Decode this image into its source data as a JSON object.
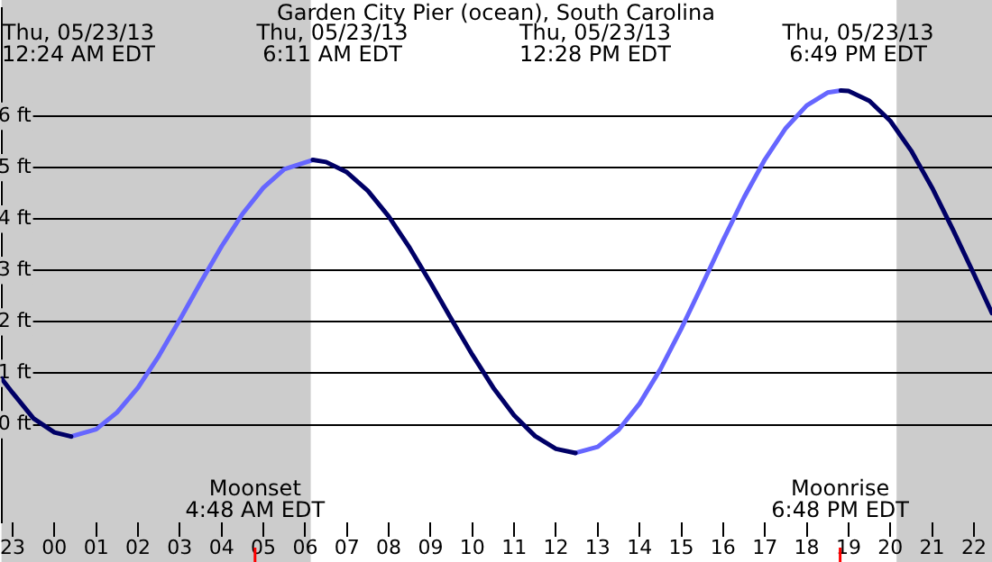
{
  "chart_data": {
    "type": "line",
    "title": "Garden City Pier (ocean), South Carolina",
    "series": [
      {
        "color": "#000066",
        "x": [
          "--05-22T22:44",
          "--05-22T23:00",
          "--05-22T23:30",
          "--05-23T00:00",
          "--05-23T00:24",
          "--05-23T03:00",
          "--05-23T06:11",
          "--05-23T06:30",
          "--05-23T07:00",
          "--05-23T07:30",
          "--05-23T08:00",
          "--05-23T08:30",
          "--05-23T09:00",
          "--05-23T09:30",
          "--05-23T10:00",
          "--05-23T10:30",
          "--05-23T11:00",
          "--05-23T11:30",
          "--05-23T12:00",
          "--05-23T12:28",
          "--05-23T15:00",
          "--05-23T18:49",
          "--05-23T19:00",
          "--05-23T19:30",
          "--05-23T20:00",
          "--05-23T20:30",
          "--05-23T21:00",
          "--05-23T21:30",
          "--05-23T22:00",
          "--05-23T22:26"
        ],
        "values": [
          0.9,
          0.62,
          0.12,
          -0.15,
          -0.23,
          null,
          5.15,
          5.11,
          4.91,
          4.55,
          4.05,
          3.44,
          2.76,
          2.05,
          1.36,
          0.72,
          0.18,
          -0.22,
          -0.47,
          -0.55,
          null,
          6.5,
          6.49,
          6.3,
          5.91,
          5.33,
          4.61,
          3.79,
          2.93,
          2.17
        ]
      },
      {
        "color": "#6666ff",
        "x": [
          "--05-23T00:24",
          "--05-23T01:00",
          "--05-23T01:30",
          "--05-23T02:00",
          "--05-23T02:30",
          "--05-23T03:00",
          "--05-23T03:30",
          "--05-23T04:00",
          "--05-23T04:30",
          "--05-23T05:00",
          "--05-23T05:30",
          "--05-23T06:11",
          "--05-23T09:00",
          "--05-23T12:28",
          "--05-23T13:00",
          "--05-23T13:30",
          "--05-23T14:00",
          "--05-23T14:30",
          "--05-23T15:00",
          "--05-23T15:30",
          "--05-23T16:00",
          "--05-23T16:30",
          "--05-23T17:00",
          "--05-23T17:30",
          "--05-23T18:00",
          "--05-23T18:30",
          "--05-23T18:49"
        ],
        "values": [
          -0.23,
          -0.09,
          0.24,
          0.72,
          1.34,
          2.04,
          2.77,
          3.47,
          4.1,
          4.61,
          4.97,
          5.15,
          null,
          -0.55,
          -0.43,
          -0.1,
          0.41,
          1.08,
          1.87,
          2.72,
          3.59,
          4.42,
          5.16,
          5.77,
          6.21,
          6.46,
          6.5
        ]
      }
    ],
    "xlim": [
      "--05-22T22:44",
      "--05-23T22:26"
    ],
    "xticks": [
      {
        "value": "--05-22T23:00",
        "label": "23"
      },
      {
        "value": "--05-23T00:00",
        "label": "00"
      },
      {
        "value": "--05-23T01:00",
        "label": "01"
      },
      {
        "value": "--05-23T02:00",
        "label": "02"
      },
      {
        "value": "--05-23T03:00",
        "label": "03"
      },
      {
        "value": "--05-23T04:00",
        "label": "04"
      },
      {
        "value": "--05-23T05:00",
        "label": "05"
      },
      {
        "value": "--05-23T06:00",
        "label": "06"
      },
      {
        "value": "--05-23T07:00",
        "label": "07"
      },
      {
        "value": "--05-23T08:00",
        "label": "08"
      },
      {
        "value": "--05-23T09:00",
        "label": "09"
      },
      {
        "value": "--05-23T10:00",
        "label": "10"
      },
      {
        "value": "--05-23T11:00",
        "label": "11"
      },
      {
        "value": "--05-23T12:00",
        "label": "12"
      },
      {
        "value": "--05-23T13:00",
        "label": "13"
      },
      {
        "value": "--05-23T14:00",
        "label": "14"
      },
      {
        "value": "--05-23T15:00",
        "label": "15"
      },
      {
        "value": "--05-23T16:00",
        "label": "16"
      },
      {
        "value": "--05-23T17:00",
        "label": "17"
      },
      {
        "value": "--05-23T18:00",
        "label": "18"
      },
      {
        "value": "--05-23T19:00",
        "label": "19"
      },
      {
        "value": "--05-23T20:00",
        "label": "20"
      },
      {
        "value": "--05-23T21:00",
        "label": "21"
      },
      {
        "value": "--05-23T22:00",
        "label": "22"
      }
    ],
    "ylim": [
      -1.9,
      8.1
    ],
    "yticks": [
      {
        "value": 0,
        "label": "0 ft"
      },
      {
        "value": 1,
        "label": "1 ft"
      },
      {
        "value": 2,
        "label": "2 ft"
      },
      {
        "value": 3,
        "label": "3 ft"
      },
      {
        "value": 4,
        "label": "4 ft"
      },
      {
        "value": 5,
        "label": "5 ft"
      },
      {
        "value": 6,
        "label": "6 ft"
      }
    ],
    "grid": "y",
    "legend": false,
    "marker": "none",
    "line_style": "solid",
    "bands": [
      {
        "axis": "x",
        "from": "--05-22T22:44",
        "to": "--05-23T06:08",
        "color": "#cccccc"
      },
      {
        "axis": "x",
        "from": "--05-23T20:09",
        "to": "--05-23T22:26",
        "color": "#cccccc"
      }
    ],
    "ref_lines": [
      {
        "axis": "x",
        "value": "--05-23T04:48",
        "label": "Moonset\n4:48 AM EDT",
        "color": "#ff0000"
      },
      {
        "axis": "x",
        "value": "--05-23T18:48",
        "label": "Moonrise\n6:48 PM EDT",
        "color": "#ff0000"
      }
    ],
    "annotations": [
      "Thu, 05/23/13\n12:24 AM EDT",
      "Thu, 05/23/13\n6:11 AM EDT",
      "Thu, 05/23/13\n12:28 PM EDT",
      "Thu, 05/23/13\n6:49 PM EDT"
    ]
  }
}
